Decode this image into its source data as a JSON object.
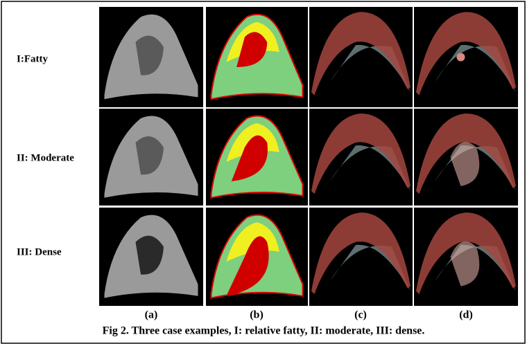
{
  "row_labels": [
    "I:Fatty",
    "II: Moderate",
    "III: Dense"
  ],
  "column_labels": [
    "(a)",
    "(b)",
    "(c)",
    "(d)"
  ],
  "caption": "Fig 2. Three case examples, I: relative fatty, II: moderate, III: dense."
}
